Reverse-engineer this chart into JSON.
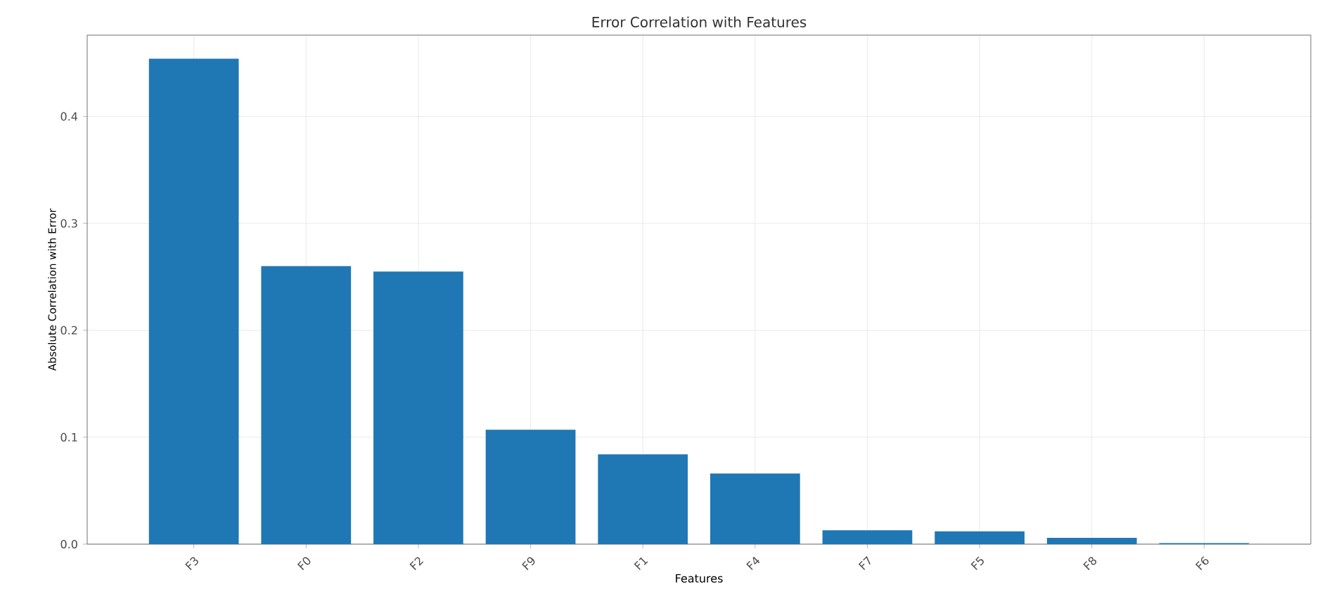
{
  "chart_data": {
    "type": "bar",
    "title": "Error Correlation with Features",
    "xlabel": "Features",
    "ylabel": "Absolute Correlation with Error",
    "categories": [
      "F3",
      "F0",
      "F2",
      "F9",
      "F1",
      "F4",
      "F7",
      "F5",
      "F8",
      "F6"
    ],
    "values": [
      0.454,
      0.26,
      0.255,
      0.107,
      0.084,
      0.066,
      0.013,
      0.012,
      0.006,
      0.001
    ],
    "color": "#1f77b4",
    "ylim": [
      0,
      0.476
    ],
    "yticks": [
      {
        "value": 0,
        "label": "0.0"
      },
      0.1,
      0.2,
      0.3,
      0.4
    ],
    "grid": true
  }
}
